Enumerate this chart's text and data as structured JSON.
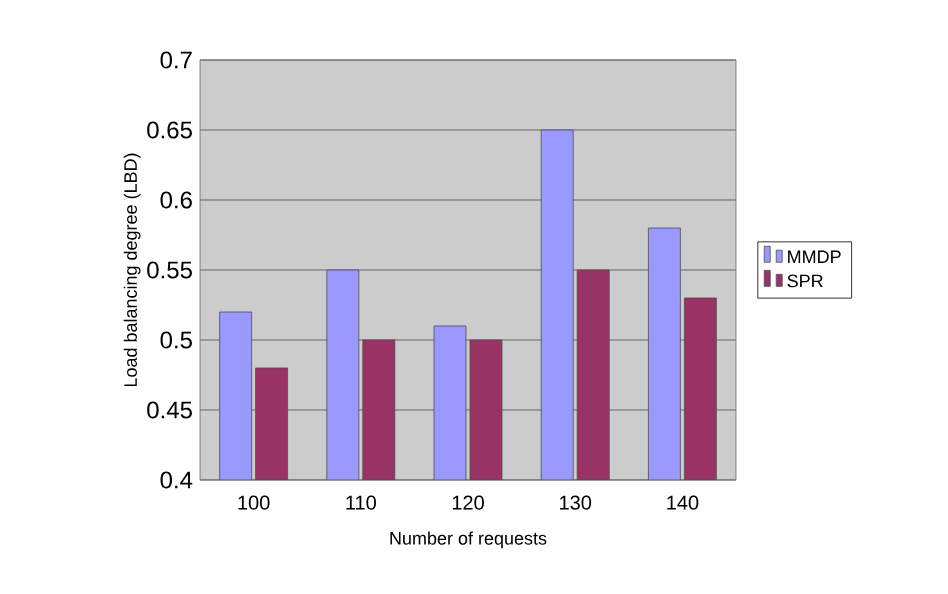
{
  "chart_data": {
    "type": "bar",
    "xlabel": "Number of requests",
    "ylabel": "Load balancing degree (LBD)",
    "categories": [
      "100",
      "110",
      "120",
      "130",
      "140"
    ],
    "series": [
      {
        "name": "MMDP",
        "color": "#9999ff",
        "values": [
          0.52,
          0.55,
          0.51,
          0.65,
          0.58
        ]
      },
      {
        "name": "SPR",
        "color": "#993366",
        "values": [
          0.48,
          0.5,
          0.5,
          0.55,
          0.53
        ]
      }
    ],
    "ylim": [
      0.4,
      0.7
    ],
    "yticks": [
      0.4,
      0.45,
      0.5,
      0.55,
      0.6,
      0.65,
      0.7
    ],
    "grid": "y",
    "legend": "right"
  }
}
